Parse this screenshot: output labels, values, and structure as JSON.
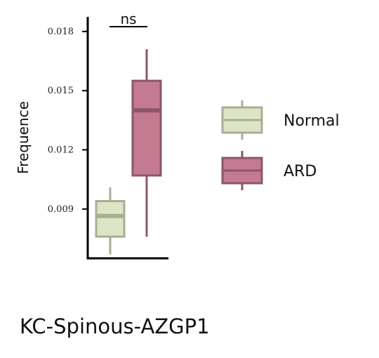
{
  "chart_data": {
    "type": "box",
    "title": "KC-Spinous-AZGP1",
    "ylabel": "Frequence",
    "xlabel": "",
    "ylim": [
      0.0065,
      0.0186
    ],
    "yticks": [
      0.009,
      0.012,
      0.015,
      0.018
    ],
    "ytick_labels": [
      "0.009",
      "0.012",
      "0.015",
      "0.018"
    ],
    "grid": false,
    "legend_position": "right",
    "significance": {
      "label": "ns",
      "between": [
        "Normal",
        "ARD"
      ]
    },
    "series": [
      {
        "name": "Normal",
        "color_fill": "#dde6c4",
        "color_edge": "#a8ae96",
        "whisker_low": 0.0067,
        "q1": 0.0076,
        "median": 0.00865,
        "q3": 0.0094,
        "whisker_high": 0.0101
      },
      {
        "name": "ARD",
        "color_fill": "#c47b92",
        "color_edge": "#8c566b",
        "whisker_low": 0.0076,
        "q1": 0.0107,
        "median": 0.014,
        "q3": 0.0155,
        "whisker_high": 0.0171
      }
    ]
  }
}
